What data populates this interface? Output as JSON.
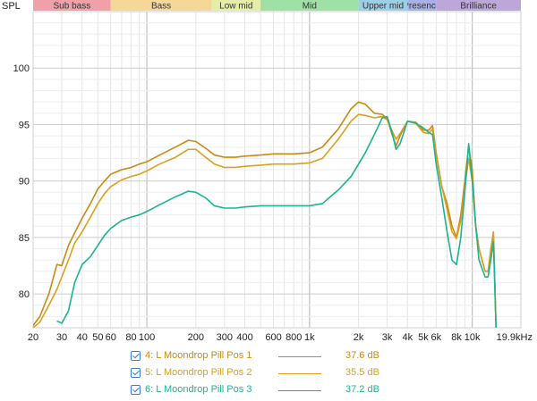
{
  "chart_data": {
    "type": "line",
    "ylabel": "SPL",
    "x_scale": "log",
    "xlim": [
      20,
      19900
    ],
    "ylim": [
      77,
      105
    ],
    "x_ticks": [
      20,
      30,
      40,
      50,
      60,
      80,
      100,
      200,
      300,
      400,
      600,
      800,
      1000,
      2000,
      3000,
      4000,
      5000,
      6000,
      8000,
      10000,
      19900
    ],
    "x_tick_labels": [
      "20",
      "30",
      "40",
      "50",
      "60",
      "80",
      "100",
      "200",
      "300",
      "400",
      "600",
      "800",
      "1k",
      "2k",
      "3k",
      "4k",
      "5k",
      "6k",
      "8k",
      "10k",
      "19.9kHz"
    ],
    "y_ticks": [
      80,
      85,
      90,
      95,
      100
    ],
    "y_tick_labels": [
      "80",
      "85",
      "90",
      "95",
      "100"
    ],
    "grid": true,
    "bands": [
      {
        "label": "Sub bass",
        "from": 20,
        "to": 60,
        "color": "#f0a0a8"
      },
      {
        "label": "Bass",
        "from": 60,
        "to": 250,
        "color": "#f5d898"
      },
      {
        "label": "Low mid",
        "from": 250,
        "to": 500,
        "color": "#e6eda8"
      },
      {
        "label": "Mid",
        "from": 500,
        "to": 2000,
        "color": "#9fe0a5"
      },
      {
        "label": "Upper mid",
        "from": 2000,
        "to": 4000,
        "color": "#99d0e6"
      },
      {
        "label": "Presence",
        "from": 4000,
        "to": 6000,
        "color": "#a8b0ea"
      },
      {
        "label": "Brilliance",
        "from": 6000,
        "to": 19900,
        "color": "#bca8d8"
      }
    ],
    "series": [
      {
        "name": "4: L Moondrop Pill Pos 1",
        "value": "37.6 dB",
        "color": "#c98a12",
        "points": [
          [
            20,
            77.2
          ],
          [
            22,
            78
          ],
          [
            25,
            80
          ],
          [
            28,
            82.6
          ],
          [
            30,
            82.5
          ],
          [
            33,
            84.3
          ],
          [
            36,
            85.4
          ],
          [
            40,
            86.7
          ],
          [
            45,
            88
          ],
          [
            50,
            89.3
          ],
          [
            55,
            90
          ],
          [
            60,
            90.6
          ],
          [
            70,
            91
          ],
          [
            80,
            91.2
          ],
          [
            90,
            91.5
          ],
          [
            100,
            91.7
          ],
          [
            120,
            92.3
          ],
          [
            150,
            93
          ],
          [
            180,
            93.6
          ],
          [
            200,
            93.5
          ],
          [
            230,
            92.9
          ],
          [
            260,
            92.3
          ],
          [
            300,
            92.1
          ],
          [
            350,
            92.1
          ],
          [
            400,
            92.2
          ],
          [
            500,
            92.3
          ],
          [
            600,
            92.4
          ],
          [
            800,
            92.4
          ],
          [
            1000,
            92.5
          ],
          [
            1200,
            93
          ],
          [
            1500,
            94.6
          ],
          [
            1800,
            96.4
          ],
          [
            2000,
            97
          ],
          [
            2200,
            96.8
          ],
          [
            2500,
            96
          ],
          [
            2800,
            95.9
          ],
          [
            3000,
            95.5
          ],
          [
            3200,
            94.2
          ],
          [
            3400,
            93.1
          ],
          [
            3600,
            94
          ],
          [
            4000,
            95.3
          ],
          [
            4500,
            95.2
          ],
          [
            5000,
            94.5
          ],
          [
            5400,
            94.5
          ],
          [
            5700,
            94.9
          ],
          [
            6000,
            92.5
          ],
          [
            6500,
            89.5
          ],
          [
            7000,
            88
          ],
          [
            7500,
            86
          ],
          [
            8000,
            85
          ],
          [
            8500,
            87
          ],
          [
            9000,
            90
          ],
          [
            9500,
            93.1
          ],
          [
            10000,
            91
          ],
          [
            10500,
            86
          ],
          [
            11000,
            84
          ],
          [
            12000,
            82
          ],
          [
            12500,
            82
          ],
          [
            13000,
            83.5
          ],
          [
            13500,
            85.2
          ],
          [
            14000,
            77
          ]
        ]
      },
      {
        "name": "5: L Moondrop Pill Pos 2",
        "value": "35.5 dB",
        "color": "#d9a020",
        "points": [
          [
            20,
            77
          ],
          [
            22,
            77.5
          ],
          [
            25,
            79
          ],
          [
            28,
            80.4
          ],
          [
            30,
            81.5
          ],
          [
            33,
            83
          ],
          [
            36,
            84.5
          ],
          [
            40,
            85.5
          ],
          [
            45,
            86.8
          ],
          [
            50,
            88
          ],
          [
            55,
            88.9
          ],
          [
            60,
            89.5
          ],
          [
            70,
            90.1
          ],
          [
            80,
            90.4
          ],
          [
            90,
            90.6
          ],
          [
            100,
            90.9
          ],
          [
            120,
            91.5
          ],
          [
            150,
            92.1
          ],
          [
            180,
            92.8
          ],
          [
            200,
            92.8
          ],
          [
            230,
            92.1
          ],
          [
            260,
            91.5
          ],
          [
            300,
            91.2
          ],
          [
            350,
            91.2
          ],
          [
            400,
            91.3
          ],
          [
            500,
            91.4
          ],
          [
            600,
            91.5
          ],
          [
            800,
            91.5
          ],
          [
            1000,
            91.6
          ],
          [
            1200,
            92
          ],
          [
            1500,
            93.7
          ],
          [
            1800,
            95.3
          ],
          [
            2000,
            95.9
          ],
          [
            2200,
            95.8
          ],
          [
            2500,
            95.6
          ],
          [
            2800,
            95.7
          ],
          [
            3000,
            95.4
          ],
          [
            3200,
            94.5
          ],
          [
            3400,
            93.7
          ],
          [
            3600,
            94.2
          ],
          [
            4000,
            95.3
          ],
          [
            4500,
            95.1
          ],
          [
            5000,
            94.3
          ],
          [
            5400,
            94.2
          ],
          [
            5700,
            94.6
          ],
          [
            6000,
            92.3
          ],
          [
            6500,
            89.5
          ],
          [
            7000,
            87.5
          ],
          [
            7500,
            85.5
          ],
          [
            8000,
            84.9
          ],
          [
            8500,
            86.5
          ],
          [
            9000,
            89.5
          ],
          [
            9500,
            92
          ],
          [
            10000,
            90
          ],
          [
            10500,
            86
          ],
          [
            11000,
            84
          ],
          [
            12000,
            82
          ],
          [
            12500,
            82
          ],
          [
            13000,
            84
          ],
          [
            13500,
            85.5
          ],
          [
            14000,
            77
          ]
        ]
      },
      {
        "name": "6: L Moondrop Pill Pos 3",
        "value": "37.2 dB",
        "color": "#1cb393",
        "points": [
          [
            28,
            77.6
          ],
          [
            30,
            77.4
          ],
          [
            33,
            78.5
          ],
          [
            36,
            81
          ],
          [
            40,
            82.6
          ],
          [
            45,
            83.3
          ],
          [
            50,
            84.3
          ],
          [
            55,
            85.2
          ],
          [
            60,
            85.8
          ],
          [
            70,
            86.5
          ],
          [
            80,
            86.8
          ],
          [
            90,
            87
          ],
          [
            100,
            87.3
          ],
          [
            120,
            87.9
          ],
          [
            150,
            88.6
          ],
          [
            180,
            89.1
          ],
          [
            200,
            89
          ],
          [
            230,
            88.5
          ],
          [
            260,
            87.8
          ],
          [
            300,
            87.6
          ],
          [
            350,
            87.6
          ],
          [
            400,
            87.7
          ],
          [
            500,
            87.8
          ],
          [
            600,
            87.8
          ],
          [
            800,
            87.8
          ],
          [
            1000,
            87.8
          ],
          [
            1200,
            88
          ],
          [
            1500,
            89.2
          ],
          [
            1800,
            90.4
          ],
          [
            2000,
            91.5
          ],
          [
            2200,
            92.5
          ],
          [
            2500,
            94.1
          ],
          [
            2800,
            95.6
          ],
          [
            3000,
            95.7
          ],
          [
            3200,
            94.4
          ],
          [
            3400,
            92.8
          ],
          [
            3600,
            93.3
          ],
          [
            4000,
            95.3
          ],
          [
            4500,
            95.1
          ],
          [
            5000,
            94.7
          ],
          [
            5400,
            94.3
          ],
          [
            5700,
            94.1
          ],
          [
            6000,
            91.5
          ],
          [
            6500,
            88.5
          ],
          [
            7000,
            85.5
          ],
          [
            7500,
            83
          ],
          [
            8000,
            82.6
          ],
          [
            8500,
            85
          ],
          [
            9000,
            89
          ],
          [
            9500,
            93.3
          ],
          [
            10000,
            90
          ],
          [
            10500,
            86
          ],
          [
            11000,
            83
          ],
          [
            12000,
            81.5
          ],
          [
            12500,
            81.5
          ],
          [
            13000,
            83
          ],
          [
            13500,
            84.6
          ],
          [
            14000,
            77
          ]
        ]
      }
    ]
  }
}
